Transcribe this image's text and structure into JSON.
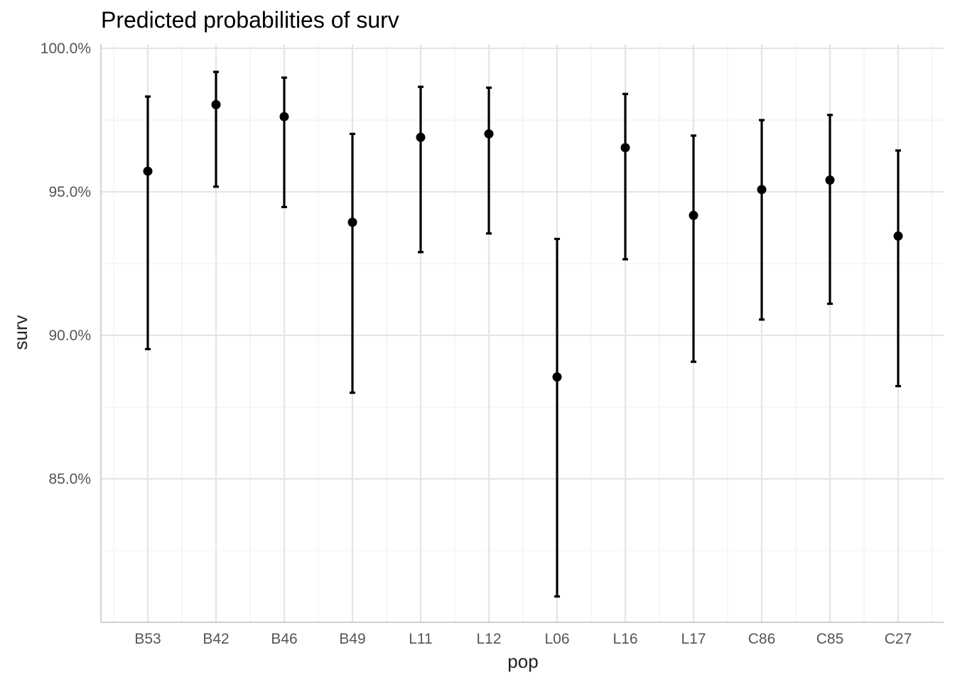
{
  "chart_data": {
    "type": "scatter",
    "title": "Predicted probabilities of surv",
    "xlabel": "pop",
    "ylabel": "surv",
    "categories": [
      "B53",
      "B42",
      "B46",
      "B49",
      "L11",
      "L12",
      "L06",
      "L16",
      "L17",
      "C86",
      "C85",
      "C27"
    ],
    "values": [
      95.72,
      98.04,
      97.62,
      93.94,
      96.9,
      97.02,
      88.55,
      96.54,
      94.18,
      95.08,
      95.41,
      93.46
    ],
    "lower": [
      89.52,
      95.18,
      94.47,
      88.0,
      92.9,
      93.55,
      80.9,
      92.65,
      89.08,
      90.55,
      91.1,
      88.23
    ],
    "upper": [
      98.32,
      99.18,
      98.98,
      97.02,
      98.66,
      98.63,
      93.36,
      98.41,
      96.96,
      97.5,
      97.68,
      96.44
    ],
    "yticks": [
      85.0,
      90.0,
      95.0,
      100.0
    ],
    "ytick_labels": [
      "85.0%",
      "90.0%",
      "95.0%",
      "100.0%"
    ],
    "ylim": [
      80.0,
      100.15
    ],
    "grid": true,
    "point_color": "#000000",
    "errorbar_color": "#000000",
    "legend": "none"
  }
}
